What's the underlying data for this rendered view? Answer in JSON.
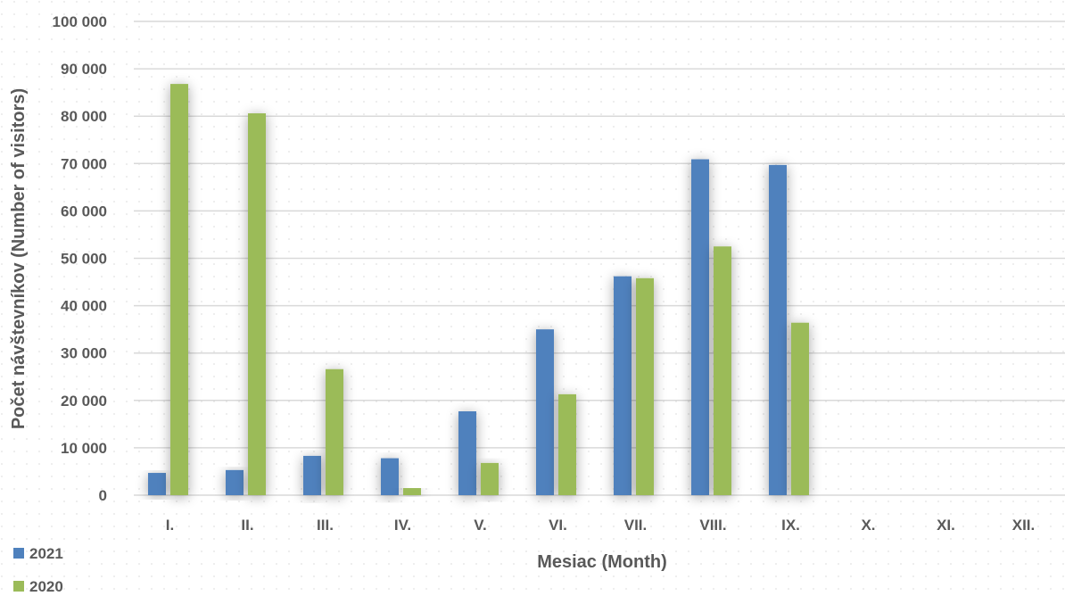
{
  "chart_data": {
    "type": "bar",
    "categories": [
      "I.",
      "II.",
      "III.",
      "IV.",
      "V.",
      "VI.",
      "VII.",
      "VIII.",
      "IX.",
      "X.",
      "XI.",
      "XII."
    ],
    "series": [
      {
        "name": "2021",
        "color": "#4f81bd",
        "values": [
          4700,
          5300,
          8300,
          7800,
          17700,
          35000,
          46200,
          70900,
          69700,
          null,
          null,
          null
        ]
      },
      {
        "name": "2020",
        "color": "#9bbb59",
        "values": [
          86800,
          80600,
          26600,
          1500,
          6800,
          21300,
          45800,
          52500,
          36400,
          null,
          null,
          null
        ]
      }
    ],
    "xlabel": "Mesiac (Month)",
    "ylabel": "Počet návštevníkov (Number of visitors)",
    "ylim": [
      0,
      100000
    ],
    "yticks": [
      0,
      10000,
      20000,
      30000,
      40000,
      50000,
      60000,
      70000,
      80000,
      90000,
      100000
    ],
    "ytick_labels": [
      "0",
      "10 000",
      "20 000",
      "30 000",
      "40 000",
      "50 000",
      "60 000",
      "70 000",
      "80 000",
      "90 000",
      "100 000"
    ],
    "grid": true,
    "legend": "bottom-left"
  }
}
